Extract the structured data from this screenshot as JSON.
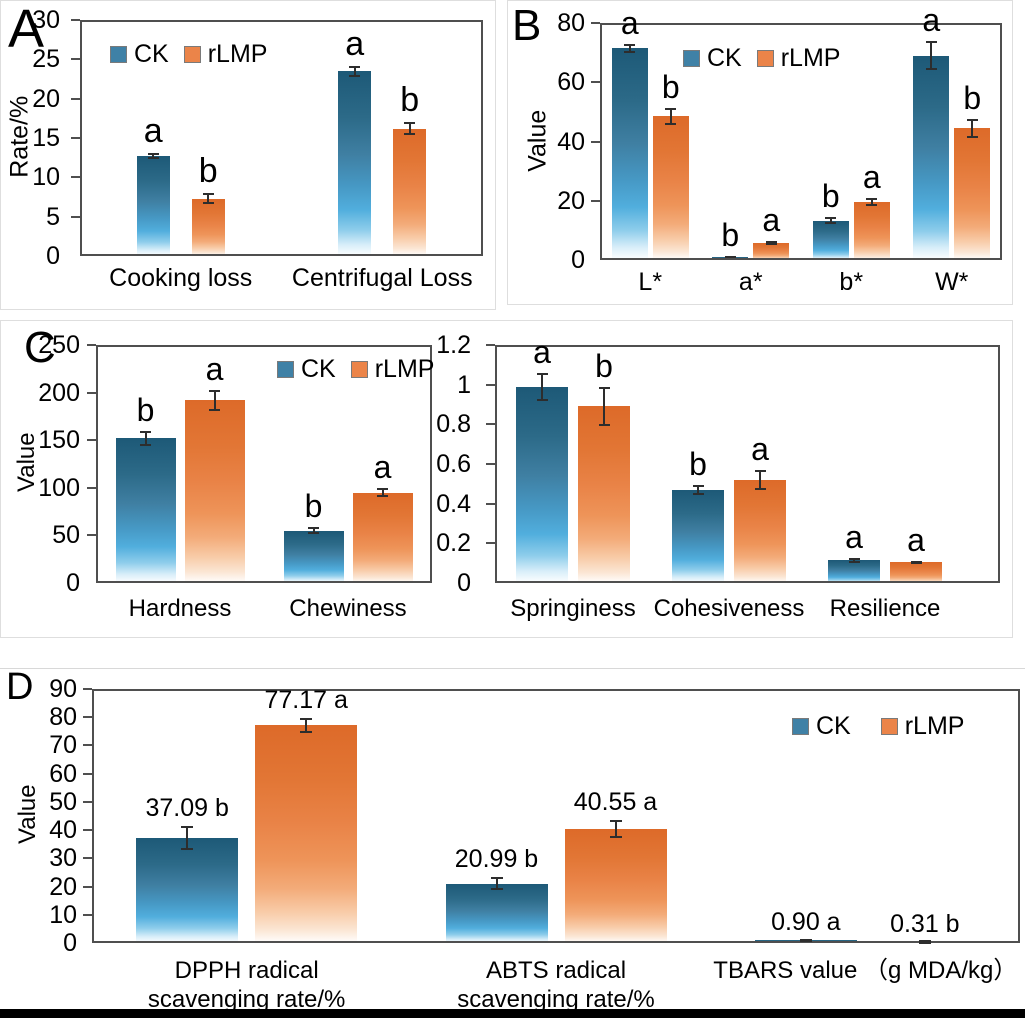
{
  "figure": {
    "legend_labels": [
      "CK",
      "rLMP"
    ],
    "panel_letters": [
      "A",
      "B",
      "C",
      "D"
    ]
  },
  "colors": {
    "axis": "#4f4f4f",
    "error_bar": "#2d2d2d",
    "panel_border": "#dedede",
    "bottom_bar": "#000000",
    "legend_ck": "#3f81a6",
    "legend_rlmp": "#eb8449",
    "ck": {
      "dark": "#1d5977",
      "d2": "#2c6a88",
      "mid": "#3f7fa2",
      "m2": "#4698c4",
      "bright": "#51aedd",
      "b2": "#8ecdeb",
      "pale": "#d8eef9"
    },
    "rlmp": {
      "dark": "#dd6a29",
      "d2": "#e27635",
      "mid": "#e98347",
      "m2": "#ee9459",
      "bright": "#f3ab79",
      "b2": "#f8cca9",
      "pale": "#fbe6d4"
    }
  },
  "chart_data": [
    {
      "id": "A",
      "panel_letter": "A",
      "type": "bar",
      "ylabel": "Rate/%",
      "ylim": [
        0,
        30
      ],
      "yticks": [
        "0",
        "5",
        "10",
        "15",
        "20",
        "25",
        "30"
      ],
      "categories": [
        "Cooking loss",
        "Centrifugal Loss"
      ],
      "legend": true,
      "series": [
        {
          "name": "CK",
          "color": "ck",
          "values": [
            12.7,
            23.5
          ],
          "errors": [
            0.4,
            0.7
          ],
          "letters": [
            "a",
            "a"
          ]
        },
        {
          "name": "rLMP",
          "color": "rlmp",
          "values": [
            7.3,
            16.2
          ],
          "errors": [
            0.7,
            0.8
          ],
          "letters": [
            "b",
            "b"
          ]
        }
      ]
    },
    {
      "id": "B",
      "panel_letter": "B",
      "type": "bar",
      "ylabel": "Value",
      "ylim": [
        0,
        80
      ],
      "yticks": [
        "0",
        "20",
        "40",
        "60",
        "80"
      ],
      "categories": [
        "L*",
        "a*",
        "b*",
        "W*"
      ],
      "legend": true,
      "series": [
        {
          "name": "CK",
          "color": "ck",
          "values": [
            71.5,
            1.0,
            13.2,
            69
          ],
          "errors": [
            1.5,
            0.3,
            1.2,
            4.8
          ],
          "letters": [
            "a",
            "b",
            "b",
            "a"
          ]
        },
        {
          "name": "rLMP",
          "color": "rlmp",
          "values": [
            48.5,
            5.8,
            19.5,
            44.5
          ],
          "errors": [
            2.8,
            0.6,
            1.3,
            3.2
          ],
          "letters": [
            "b",
            "a",
            "a",
            "b"
          ]
        }
      ]
    },
    {
      "id": "C1",
      "panel_letter": "C",
      "type": "bar",
      "ylabel": "Value",
      "ylim": [
        0,
        250
      ],
      "yticks": [
        "0",
        "50",
        "100",
        "150",
        "200",
        "250"
      ],
      "categories": [
        "Hardness",
        "Chewiness"
      ],
      "legend": true,
      "series": [
        {
          "name": "CK",
          "color": "ck",
          "values": [
            152,
            55
          ],
          "errors": [
            8,
            4
          ],
          "letters": [
            "b",
            "b"
          ]
        },
        {
          "name": "rLMP",
          "color": "rlmp",
          "values": [
            192,
            95
          ],
          "errors": [
            11,
            5
          ],
          "letters": [
            "a",
            "a"
          ]
        }
      ]
    },
    {
      "id": "C2",
      "type": "bar",
      "ylabel": "",
      "ylim": [
        0,
        1.2
      ],
      "yticks": [
        "0",
        "0.2",
        "0.4",
        "0.6",
        "0.8",
        "1",
        "1.2"
      ],
      "categories": [
        "Springiness",
        "Cohesiveness",
        "Resilience"
      ],
      "legend": false,
      "series": [
        {
          "name": "CK",
          "color": "ck",
          "values": [
            0.99,
            0.47,
            0.115
          ],
          "errors": [
            0.07,
            0.025,
            0.012
          ],
          "letters": [
            "a",
            "b",
            "a"
          ]
        },
        {
          "name": "rLMP",
          "color": "rlmp",
          "values": [
            0.89,
            0.52,
            0.105
          ],
          "errors": [
            0.1,
            0.05,
            0.008
          ],
          "letters": [
            "b",
            "a",
            "a"
          ]
        }
      ]
    },
    {
      "id": "D",
      "panel_letter": "D",
      "type": "bar",
      "ylabel": "Value",
      "ylim": [
        0,
        90
      ],
      "yticks": [
        "0",
        "10",
        "20",
        "30",
        "40",
        "50",
        "60",
        "70",
        "80",
        "90"
      ],
      "categories": [
        "DPPH radical\nscavenging rate/%",
        "ABTS radical\nscavenging rate/%",
        "TBARS value （g MDA/kg）"
      ],
      "legend": true,
      "series": [
        {
          "name": "CK",
          "color": "ck",
          "values": [
            37.09,
            20.99,
            0.9
          ],
          "errors": [
            4.3,
            2.3,
            0.15
          ],
          "letters": [
            "b",
            "b",
            "a"
          ],
          "value_labels": [
            "37.09",
            "20.99",
            "0.90"
          ]
        },
        {
          "name": "rLMP",
          "color": "rlmp",
          "values": [
            77.17,
            40.55,
            0.31
          ],
          "errors": [
            2.6,
            3.2,
            0.12
          ],
          "letters": [
            "a",
            "a",
            "b"
          ],
          "value_labels": [
            "77.17",
            "40.55",
            "0.31"
          ]
        }
      ]
    }
  ]
}
